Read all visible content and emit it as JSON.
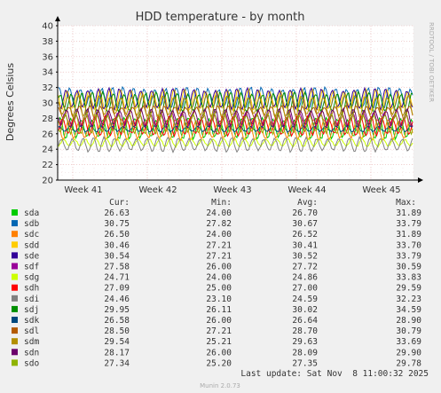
{
  "chart_data": {
    "type": "line",
    "title": "HDD temperature - by month",
    "ylabel": "Degrees Celsius",
    "ylim": [
      20,
      40
    ],
    "yticks": [
      "20",
      "22",
      "24",
      "26",
      "28",
      "30",
      "32",
      "34",
      "36",
      "38",
      "40"
    ],
    "categories": [
      "Week 41",
      "Week 42",
      "Week 43",
      "Week 44",
      "Week 45"
    ],
    "grid": true,
    "watermark": "RRDTOOL / TOBI OETIKER",
    "legend": {
      "headers": [
        "Cur:",
        "Min:",
        "Avg:",
        "Max:"
      ],
      "placement": "bottom"
    },
    "series": [
      {
        "name": "sda",
        "color": "#00cc00",
        "cur": "26.63",
        "min": "24.00",
        "avg": "26.70",
        "max": "31.89"
      },
      {
        "name": "sdb",
        "color": "#0066b3",
        "cur": "30.75",
        "min": "27.82",
        "avg": "30.67",
        "max": "33.79"
      },
      {
        "name": "sdc",
        "color": "#ff8000",
        "cur": "26.50",
        "min": "24.00",
        "avg": "26.52",
        "max": "31.89"
      },
      {
        "name": "sdd",
        "color": "#ffcc00",
        "cur": "30.46",
        "min": "27.21",
        "avg": "30.41",
        "max": "33.70"
      },
      {
        "name": "sde",
        "color": "#330099",
        "cur": "30.54",
        "min": "27.21",
        "avg": "30.52",
        "max": "33.79"
      },
      {
        "name": "sdf",
        "color": "#990099",
        "cur": "27.58",
        "min": "26.00",
        "avg": "27.72",
        "max": "30.59"
      },
      {
        "name": "sdg",
        "color": "#ccff00",
        "cur": "24.71",
        "min": "24.00",
        "avg": "24.86",
        "max": "33.83"
      },
      {
        "name": "sdh",
        "color": "#ff0000",
        "cur": "27.09",
        "min": "25.00",
        "avg": "27.00",
        "max": "29.59"
      },
      {
        "name": "sdi",
        "color": "#808080",
        "cur": "24.46",
        "min": "23.10",
        "avg": "24.59",
        "max": "32.23"
      },
      {
        "name": "sdj",
        "color": "#008f00",
        "cur": "29.95",
        "min": "26.11",
        "avg": "30.02",
        "max": "34.59"
      },
      {
        "name": "sdk",
        "color": "#00487d",
        "cur": "26.58",
        "min": "26.00",
        "avg": "26.64",
        "max": "28.90"
      },
      {
        "name": "sdl",
        "color": "#b35a00",
        "cur": "28.50",
        "min": "27.21",
        "avg": "28.70",
        "max": "30.79"
      },
      {
        "name": "sdm",
        "color": "#b38f00",
        "cur": "29.54",
        "min": "25.21",
        "avg": "29.63",
        "max": "33.69"
      },
      {
        "name": "sdn",
        "color": "#6b006b",
        "cur": "28.17",
        "min": "26.00",
        "avg": "28.09",
        "max": "29.90"
      },
      {
        "name": "sdo",
        "color": "#8fb300",
        "cur": "27.34",
        "min": "25.20",
        "avg": "27.35",
        "max": "29.78"
      }
    ]
  },
  "footer": {
    "last_update": "Last update: Sat Nov  8 11:00:32 2025",
    "version": "Munin 2.0.73"
  }
}
